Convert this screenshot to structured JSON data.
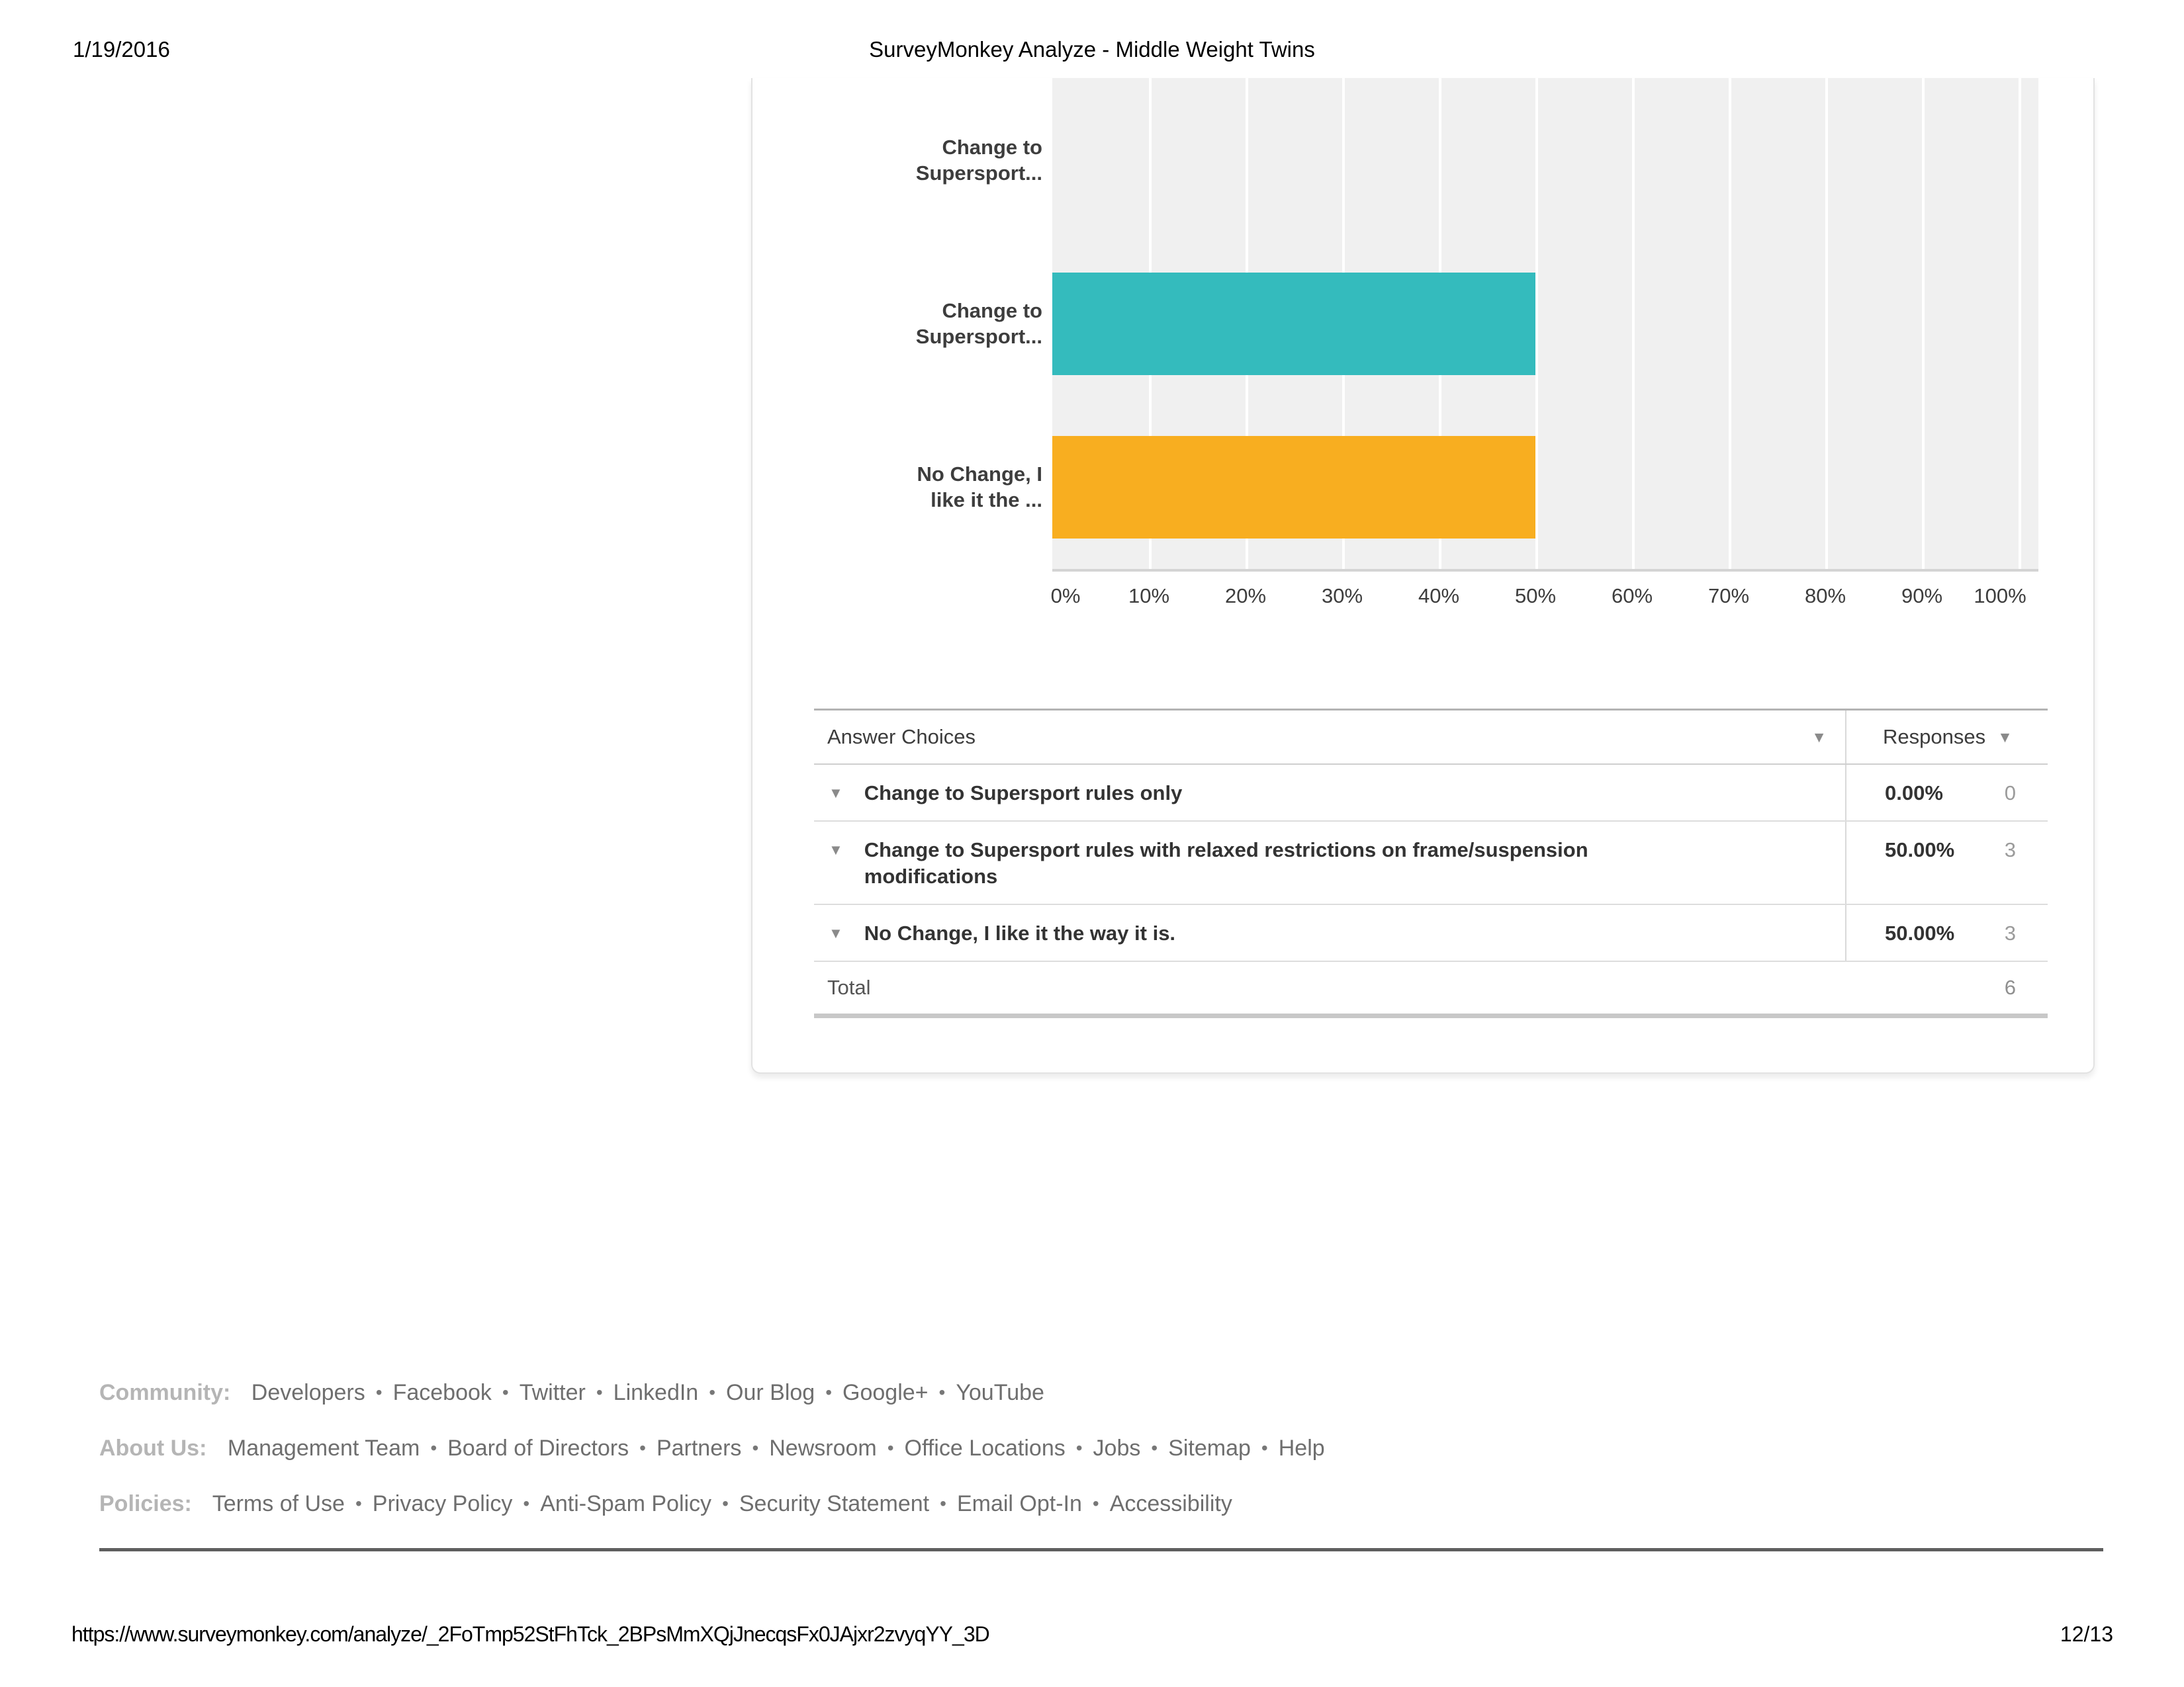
{
  "page": {
    "date": "1/19/2016",
    "title": "SurveyMonkey Analyze - Middle Weight Twins",
    "url": "https://www.surveymonkey.com/analyze/_2FoTmp52StFhTck_2BPsMmXQjJnecqsFx0JAjxr2zvyqYY_3D",
    "page_number": "12/13"
  },
  "chart_data": {
    "type": "bar",
    "orientation": "horizontal",
    "categories": [
      "Change to\nSupersport...",
      "Change to\nSupersport...",
      "No Change, I\nlike it the ..."
    ],
    "values": [
      0,
      50,
      50
    ],
    "bar_colors": [
      "#34bbbd",
      "#34bbbd",
      "#f8ae20"
    ],
    "x_ticks": [
      "0%",
      "10%",
      "20%",
      "30%",
      "40%",
      "50%",
      "60%",
      "70%",
      "80%",
      "90%",
      "100%"
    ],
    "xlim": [
      0,
      100
    ],
    "grid": true,
    "plot_background": "#f0f0f0",
    "gridline_color": "#ffffff",
    "title": "",
    "xlabel": "",
    "ylabel": ""
  },
  "table": {
    "header": {
      "answer_choices": "Answer Choices",
      "responses": "Responses"
    },
    "sort_arrow": "▼",
    "rows": [
      {
        "label": "Change to Supersport rules only",
        "percent": "0.00%",
        "count": "0"
      },
      {
        "label": "Change to Supersport rules with relaxed restrictions on frame/suspension modifications",
        "percent": "50.00%",
        "count": "3"
      },
      {
        "label": "No Change, I like it the way it is.",
        "percent": "50.00%",
        "count": "3"
      }
    ],
    "total": {
      "label": "Total",
      "count": "6"
    }
  },
  "footer": {
    "separator": "•",
    "groups": [
      {
        "label": "Community:",
        "links": [
          "Developers",
          "Facebook",
          "Twitter",
          "LinkedIn",
          "Our Blog",
          "Google+",
          "YouTube"
        ]
      },
      {
        "label": "About Us:",
        "links": [
          "Management Team",
          "Board of Directors",
          "Partners",
          "Newsroom",
          "Office Locations",
          "Jobs",
          "Sitemap",
          "Help"
        ]
      },
      {
        "label": "Policies:",
        "links": [
          "Terms of Use",
          "Privacy Policy",
          "Anti-Spam Policy",
          "Security Statement",
          "Email Opt-In",
          "Accessibility"
        ]
      }
    ]
  }
}
